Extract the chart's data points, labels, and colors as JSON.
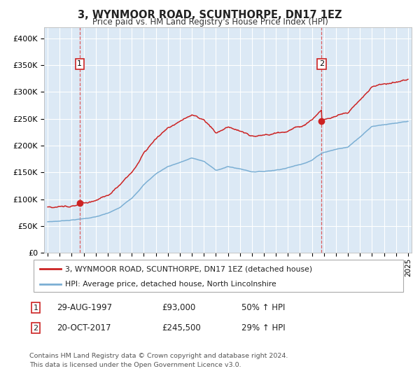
{
  "title": "3, WYNMOOR ROAD, SCUNTHORPE, DN17 1EZ",
  "subtitle": "Price paid vs. HM Land Registry's House Price Index (HPI)",
  "legend1": "3, WYNMOOR ROAD, SCUNTHORPE, DN17 1EZ (detached house)",
  "legend2": "HPI: Average price, detached house, North Lincolnshire",
  "sale1_date": "29-AUG-1997",
  "sale1_price": 93000,
  "sale1_year": 1997.66,
  "sale2_date": "20-OCT-2017",
  "sale2_price": 245500,
  "sale2_year": 2017.8,
  "footnote1": "Contains HM Land Registry data © Crown copyright and database right 2024.",
  "footnote2": "This data is licensed under the Open Government Licence v3.0.",
  "hpi_color": "#7bafd4",
  "property_color": "#cc2222",
  "vline_color": "#dd4444",
  "bg_color": "#dce9f5",
  "grid_color": "#ffffff",
  "ylim_min": 0,
  "ylim_max": 420000,
  "xmin": 1995,
  "xmax": 2025
}
